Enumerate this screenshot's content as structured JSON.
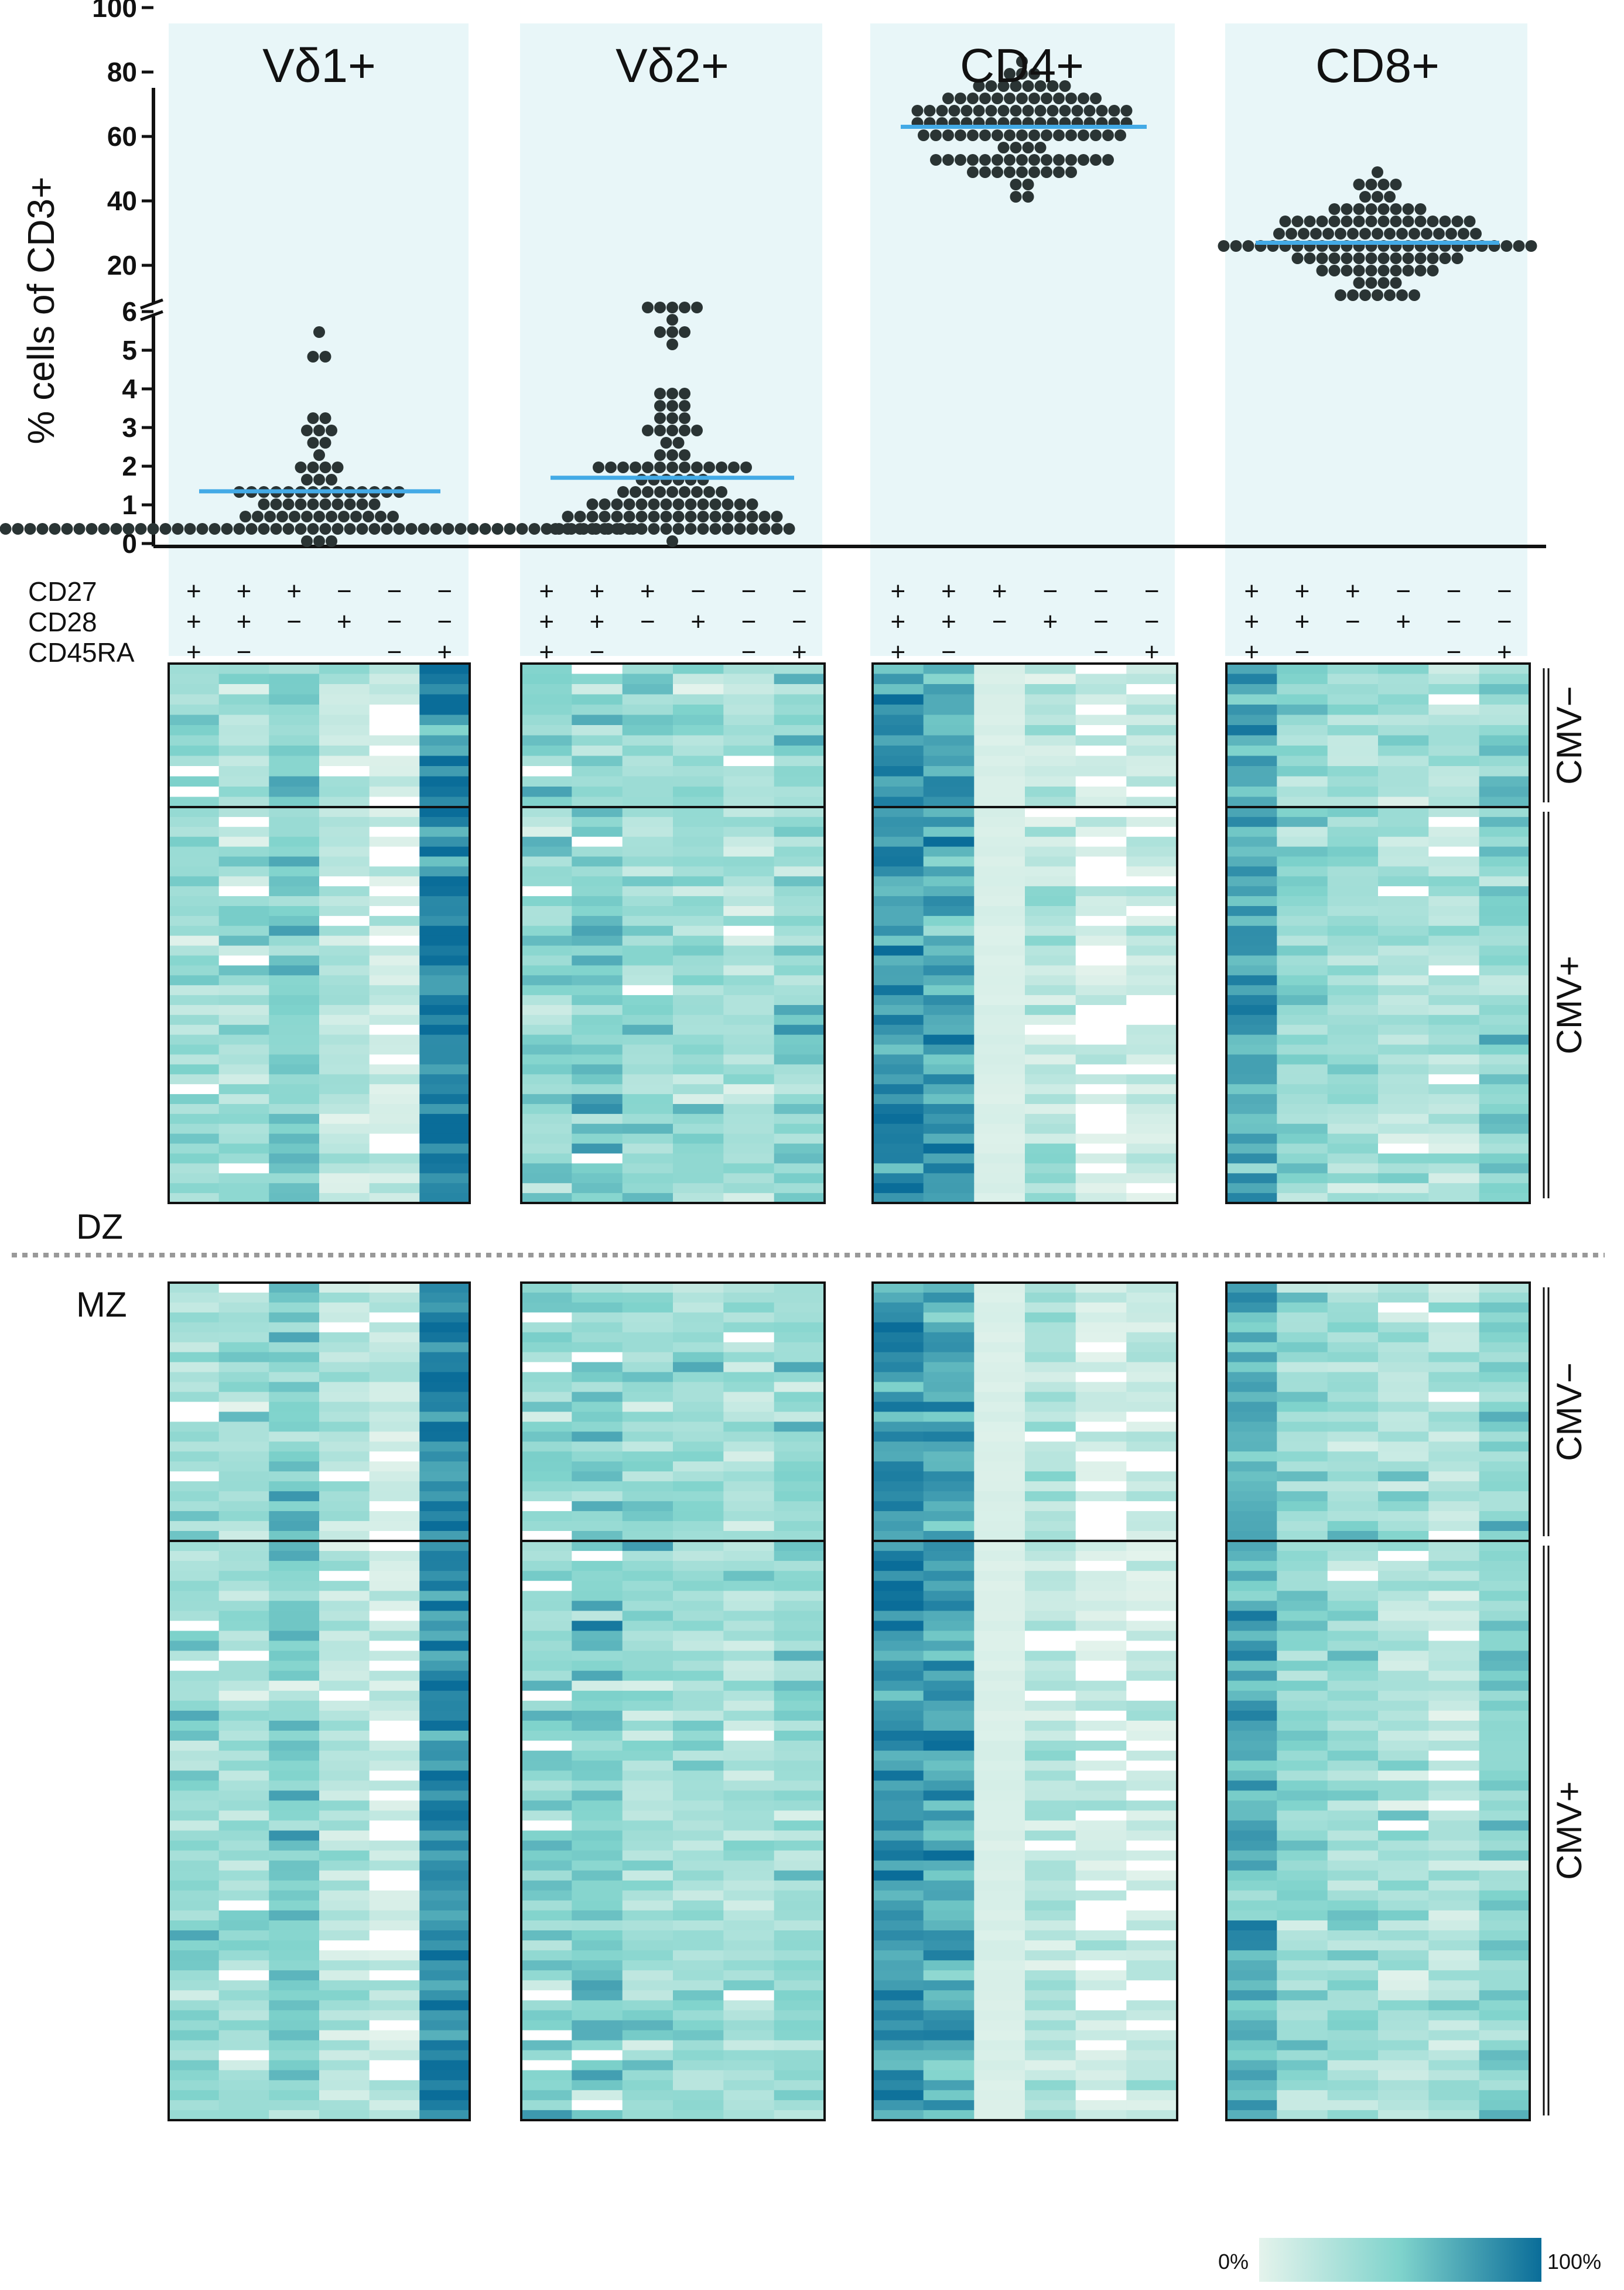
{
  "chart_data": {
    "type": "scatter",
    "ylabel": "% cells of CD3+",
    "y_ticks_lower": [
      "0",
      "1",
      "2",
      "3",
      "4",
      "5",
      "6"
    ],
    "y_ticks_upper": [
      "20",
      "40",
      "60",
      "80",
      "100"
    ],
    "y_axis_break": {
      "lower_range": [
        0,
        6
      ],
      "upper_range": [
        6,
        100
      ]
    },
    "panels": [
      {
        "title": "Vδ1+",
        "median": 1.35
      },
      {
        "title": "Vδ2+",
        "median": 1.7
      },
      {
        "title": "CD4+",
        "median": 63
      },
      {
        "title": "CD8+",
        "median": 27
      }
    ],
    "markers": {
      "names": [
        "CD27",
        "CD28",
        "CD45RA"
      ]
    },
    "subsets": [
      {
        "CD27": "+",
        "CD28": "+",
        "CD45RA": "+"
      },
      {
        "CD27": "+",
        "CD28": "+",
        "CD45RA": "−"
      },
      {
        "CD27": "+",
        "CD28": "−",
        "CD45RA": ""
      },
      {
        "CD27": "−",
        "CD28": "+",
        "CD45RA": ""
      },
      {
        "CD27": "−",
        "CD28": "−",
        "CD45RA": "−"
      },
      {
        "CD27": "−",
        "CD28": "−",
        "CD45RA": "+"
      }
    ],
    "heatmap": {
      "type": "heatmap",
      "groups": [
        {
          "zygosity": "DZ",
          "blocks": [
            {
              "cmv": "CMV−",
              "rows": 14
            },
            {
              "cmv": "CMV+",
              "rows": 40
            }
          ]
        },
        {
          "zygosity": "MZ",
          "blocks": [
            {
              "cmv": "CMV−",
              "rows": 26
            },
            {
              "cmv": "CMV+",
              "rows": 58
            }
          ]
        }
      ],
      "colorbar": {
        "min_label": "0%",
        "max_label": "100%",
        "colors": [
          "#e4f3ec",
          "#7fd3cc",
          "#0a6d99"
        ]
      }
    },
    "colors": {
      "panel_bg": "#e8f6f8",
      "dot": "#2a3434",
      "median_line": "#43aae6"
    }
  }
}
